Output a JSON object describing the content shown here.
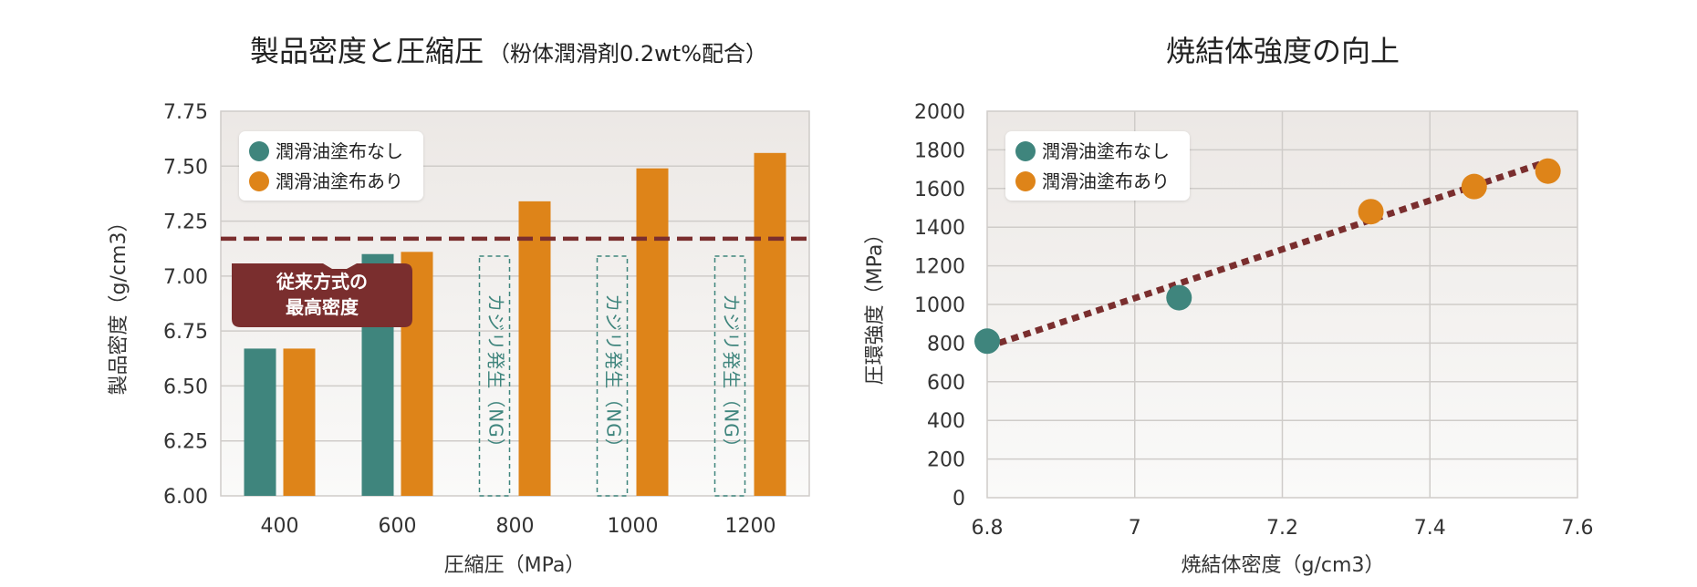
{
  "colors": {
    "teal": "#3F857D",
    "orange": "#DE8419",
    "maroon": "#7A2E2E",
    "grid": "#CFCCC9",
    "axis_text": "#333333",
    "ng_text": "#3F857D"
  },
  "chart_data": [
    {
      "type": "bar",
      "title": "製品密度と圧縮圧",
      "subtitle": "（粉体潤滑剤0.2wt%配合）",
      "xlabel": "圧縮圧（MPa）",
      "ylabel": "製品密度（g/cm3）",
      "categories": [
        "400",
        "600",
        "800",
        "1000",
        "1200"
      ],
      "ylim": [
        6.0,
        7.75
      ],
      "yticks": [
        "6.00",
        "6.25",
        "6.50",
        "6.75",
        "7.00",
        "7.25",
        "7.50",
        "7.75"
      ],
      "series": [
        {
          "name": "潤滑油塗布なし",
          "color": "#3F857D",
          "values": [
            6.67,
            7.1,
            null,
            null,
            null
          ]
        },
        {
          "name": "潤滑油塗布あり",
          "color": "#DE8419",
          "values": [
            6.67,
            7.11,
            7.34,
            7.49,
            7.56
          ]
        }
      ],
      "ng_label": "カジリ発生（NG）",
      "ng_categories": [
        "800",
        "1000",
        "1200"
      ],
      "reference_line": {
        "value": 7.17,
        "label_line1": "従来方式の",
        "label_line2": "最高密度"
      },
      "legend": "top-left",
      "grid": true
    },
    {
      "type": "scatter",
      "title": "焼結体強度の向上",
      "xlabel": "焼結体密度（g/cm3）",
      "ylabel": "圧環強度（MPa）",
      "xlim": [
        6.8,
        7.6
      ],
      "ylim": [
        0,
        2000
      ],
      "xticks": [
        "6.8",
        "7",
        "7.2",
        "7.4",
        "7.6"
      ],
      "yticks": [
        "0",
        "200",
        "400",
        "600",
        "800",
        "1000",
        "1200",
        "1400",
        "1600",
        "1800",
        "2000"
      ],
      "series": [
        {
          "name": "潤滑油塗布なし",
          "color": "#3F857D",
          "points": [
            [
              6.8,
              810
            ],
            [
              7.06,
              1035
            ]
          ]
        },
        {
          "name": "潤滑油塗布あり",
          "color": "#DE8419",
          "points": [
            [
              7.32,
              1480
            ],
            [
              7.46,
              1610
            ],
            [
              7.56,
              1690
            ]
          ]
        }
      ],
      "trendline": {
        "from": [
          6.8,
          780
        ],
        "to": [
          7.56,
          1740
        ]
      },
      "legend": "top-left",
      "grid": true
    }
  ]
}
